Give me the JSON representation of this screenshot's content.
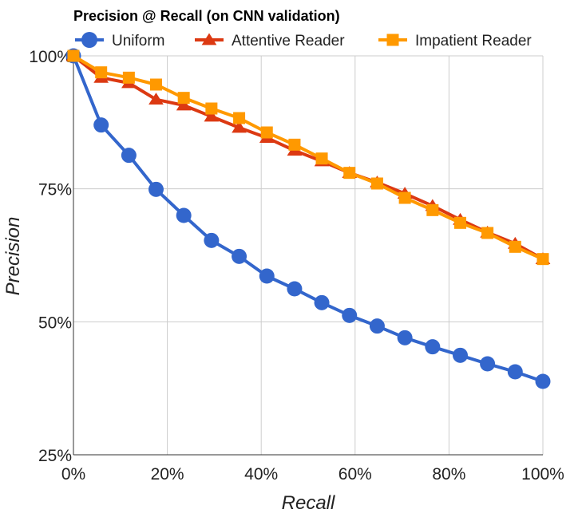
{
  "chart_data": {
    "type": "line",
    "title": "Precision @ Recall (on CNN validation)",
    "xlabel": "Recall",
    "ylabel": "Precision",
    "xlim": [
      0,
      100
    ],
    "ylim": [
      25,
      100
    ],
    "x_ticks": [
      "0%",
      "20%",
      "40%",
      "60%",
      "80%",
      "100%"
    ],
    "y_ticks": [
      "100%",
      "75%",
      "50%",
      "25%"
    ],
    "grid": true,
    "legend_position": "top",
    "x": [
      0,
      5.9,
      11.8,
      17.6,
      23.5,
      29.4,
      35.3,
      41.2,
      47.1,
      52.9,
      58.8,
      64.7,
      70.6,
      76.5,
      82.4,
      88.2,
      94.1,
      100
    ],
    "series": [
      {
        "name": "Uniform",
        "color": "#3366cc",
        "marker": "circle",
        "values": [
          100,
          87.0,
          81.3,
          74.9,
          70.0,
          65.3,
          62.3,
          58.6,
          56.2,
          53.6,
          51.2,
          49.2,
          47.0,
          45.3,
          43.7,
          42.1,
          40.6,
          38.8
        ]
      },
      {
        "name": "Attentive Reader",
        "color": "#dc3912",
        "marker": "triangle",
        "values": [
          100,
          95.9,
          94.9,
          91.8,
          90.7,
          88.6,
          86.5,
          84.6,
          82.2,
          80.2,
          78.0,
          76.2,
          74.1,
          71.8,
          69.2,
          66.8,
          64.7,
          61.8
        ]
      },
      {
        "name": "Impatient Reader",
        "color": "#ff9900",
        "marker": "square",
        "values": [
          100,
          96.9,
          95.9,
          94.6,
          92.1,
          90.1,
          88.3,
          85.6,
          83.3,
          80.7,
          78.0,
          76.0,
          73.3,
          71.0,
          68.6,
          66.7,
          64.1,
          61.8
        ]
      }
    ]
  }
}
